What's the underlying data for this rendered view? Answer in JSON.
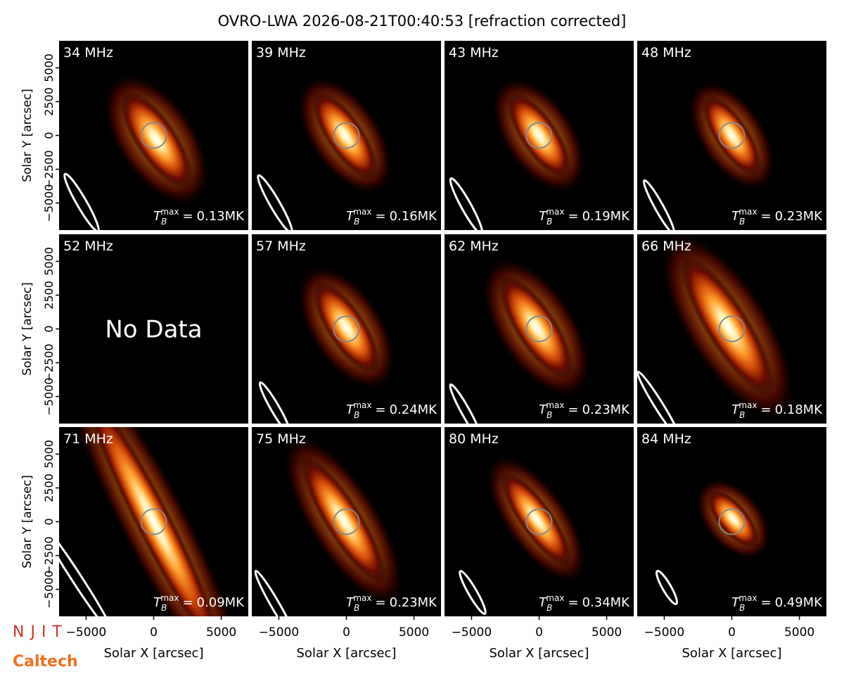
{
  "title": "OVRO-LWA 2026-08-21T00:40:53 [refraction corrected]",
  "tb_symbol": "T",
  "tb_subscript": "B",
  "tb_superscript": "max",
  "tb_equals": "=",
  "axes": {
    "xlim": [
      -7000,
      7000
    ],
    "ylim": [
      -7000,
      7000
    ],
    "xticks": [
      {
        "value": -5000,
        "label": "−5000"
      },
      0,
      5000
    ],
    "yticks": [
      {
        "value": -5000,
        "label": "−5000"
      },
      {
        "value": -2500,
        "label": "−2500"
      },
      0,
      2500,
      5000
    ],
    "xlabel": "Solar X [arcsec]",
    "ylabel": "Solar Y [arcsec]"
  },
  "logos": [
    "NJIT",
    "Caltech"
  ],
  "chart_data": [
    {
      "type": "image",
      "label": "34 MHz",
      "tb_max": 0.13,
      "tb_label": "0.13MK"
    },
    {
      "type": "image",
      "label": "39 MHz",
      "tb_max": 0.16,
      "tb_label": "0.16MK"
    },
    {
      "type": "image",
      "label": "43 MHz",
      "tb_max": 0.19,
      "tb_label": "0.19MK"
    },
    {
      "type": "image",
      "label": "48 MHz",
      "tb_max": 0.23,
      "tb_label": "0.23MK"
    },
    {
      "type": "empty",
      "label": "52 MHz",
      "no_data": "No Data"
    },
    {
      "type": "image",
      "label": "57 MHz",
      "tb_max": 0.24,
      "tb_label": "0.24MK"
    },
    {
      "type": "image",
      "label": "62 MHz",
      "tb_max": 0.23,
      "tb_label": "0.23MK"
    },
    {
      "type": "image",
      "label": "66 MHz",
      "tb_max": 0.18,
      "tb_label": "0.18MK"
    },
    {
      "type": "image",
      "label": "71 MHz",
      "tb_max": 0.09,
      "tb_label": "0.09MK"
    },
    {
      "type": "image",
      "label": "75 MHz",
      "tb_max": 0.23,
      "tb_label": "0.23MK"
    },
    {
      "type": "image",
      "label": "80 MHz",
      "tb_max": 0.34,
      "tb_label": "0.34MK"
    },
    {
      "type": "image",
      "label": "84 MHz",
      "tb_max": 0.49,
      "tb_label": "0.49MK"
    }
  ]
}
